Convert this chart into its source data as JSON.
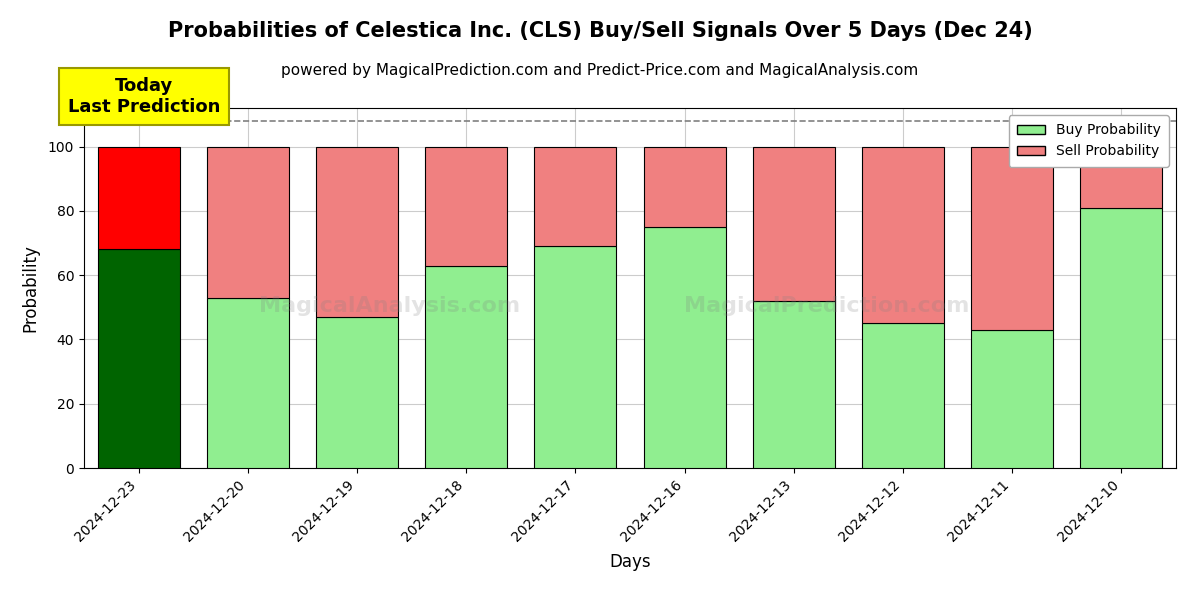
{
  "title": "Probabilities of Celestica Inc. (CLS) Buy/Sell Signals Over 5 Days (Dec 24)",
  "subtitle": "powered by MagicalPrediction.com and Predict-Price.com and MagicalAnalysis.com",
  "xlabel": "Days",
  "ylabel": "Probability",
  "categories": [
    "2024-12-23",
    "2024-12-20",
    "2024-12-19",
    "2024-12-18",
    "2024-12-17",
    "2024-12-16",
    "2024-12-13",
    "2024-12-12",
    "2024-12-11",
    "2024-12-10"
  ],
  "buy_values": [
    68,
    53,
    47,
    63,
    69,
    75,
    52,
    45,
    43,
    81
  ],
  "sell_values": [
    32,
    47,
    53,
    37,
    31,
    25,
    48,
    55,
    57,
    19
  ],
  "first_bar_buy_color": "#006400",
  "first_bar_sell_color": "#FF0000",
  "other_buy_color": "#90EE90",
  "other_sell_color": "#F08080",
  "bar_edge_color": "#000000",
  "ylim": [
    0,
    112
  ],
  "dashed_line_y": 108,
  "annotation_text": "Today\nLast Prediction",
  "annotation_bg": "#FFFF00",
  "legend_buy_label": "Buy Probability",
  "legend_sell_label": "Sell Probability",
  "grid_color": "#cccccc",
  "title_fontsize": 15,
  "subtitle_fontsize": 11,
  "bar_width": 0.75,
  "figsize": [
    12,
    6
  ],
  "dpi": 100
}
